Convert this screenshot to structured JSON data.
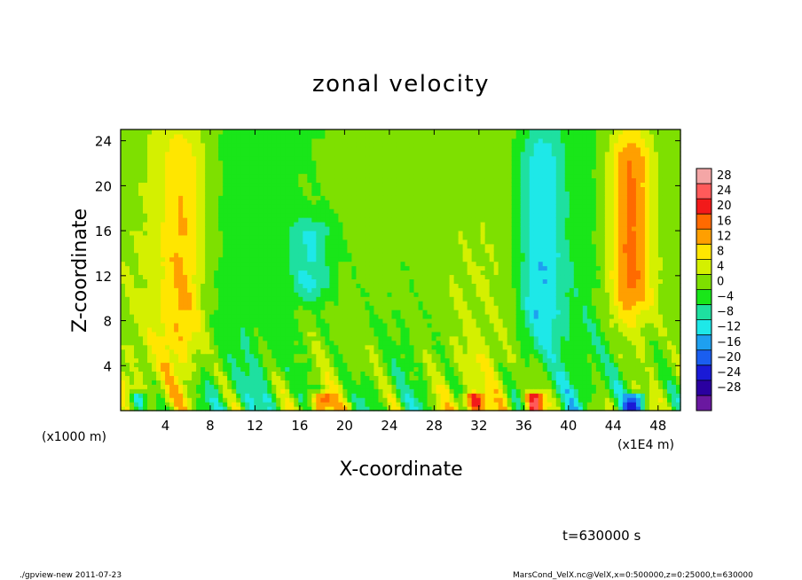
{
  "chart_data": {
    "type": "heatmap",
    "title": "zonal velocity",
    "xlabel": "X-coordinate",
    "ylabel": "Z-coordinate",
    "x_unit_left": "(x1000 m)",
    "x_unit_right": "(x1E4 m)",
    "xlim": [
      0,
      50
    ],
    "ylim": [
      0,
      25
    ],
    "xticks": [
      4,
      8,
      12,
      16,
      20,
      24,
      28,
      32,
      36,
      40,
      44,
      48
    ],
    "yticks": [
      4,
      8,
      12,
      16,
      20,
      24
    ],
    "colorbar": {
      "levels": [
        28,
        24,
        20,
        16,
        12,
        8,
        4,
        0,
        -4,
        -8,
        -12,
        -16,
        -20,
        -24,
        -28
      ],
      "labels": [
        "28",
        "24",
        "20",
        "16",
        "12",
        "8",
        "4",
        "0",
        "−4",
        "−8",
        "−12",
        "−16",
        "−20",
        "−24",
        "−28"
      ],
      "colors": [
        "#f4a6a6",
        "#ff5a5a",
        "#f21a1a",
        "#ff6a00",
        "#ff9f00",
        "#ffe600",
        "#d4f000",
        "#7ee000",
        "#19e619",
        "#1ee0a0",
        "#1ee8e8",
        "#1ea0f0",
        "#1a5ef0",
        "#1a1ad6",
        "#2a00a0",
        "#6a18a0"
      ]
    },
    "field_features": [
      {
        "x": 5.5,
        "z_range": [
          4,
          25
        ],
        "value": 10
      },
      {
        "x": 17,
        "z_range": [
          10,
          17
        ],
        "value": -9
      },
      {
        "x": 37.5,
        "z_range": [
          6,
          25
        ],
        "value": -12
      },
      {
        "x": 45.5,
        "z_range": [
          8,
          25
        ],
        "value": 17
      },
      {
        "x": 18,
        "z_range": [
          0,
          1.5
        ],
        "value": 18
      },
      {
        "x": 31.5,
        "z_range": [
          0,
          1.5
        ],
        "value": 18
      },
      {
        "x": 37,
        "z_range": [
          0,
          1.5
        ],
        "value": 24
      },
      {
        "x": 46,
        "z_range": [
          0,
          1.5
        ],
        "value": -20
      },
      {
        "x": 1.5,
        "z_range": [
          0,
          1.5
        ],
        "value": -16
      }
    ]
  },
  "annotations": {
    "time_label": "t=630000 s",
    "footer_left": "./gpview-new   2011-07-23",
    "footer_right": "MarsCond_VelX.nc@VelX,x=0:500000,z=0:25000,t=630000"
  }
}
